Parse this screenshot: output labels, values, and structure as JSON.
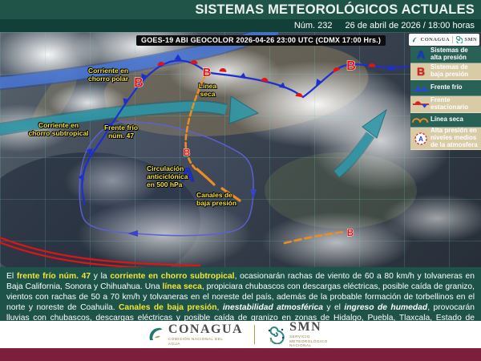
{
  "header": {
    "title": "SISTEMAS METEOROLÓGICOS ACTUALES",
    "bulletin_number": "Núm. 232",
    "datetime": "26 de abril de 2026 / 18:00 horas"
  },
  "map": {
    "satellite_caption": "GOES-19 ABI GEOCOLOR 2026-04-26 23:00 UTC (CDMX  17:00 Hrs.)",
    "corner_logos": {
      "conagua": "CONAGUA",
      "smn": "SMN"
    },
    "labels": {
      "polar_jet": "Corriente en\nchorro polar",
      "subtropical_jet": "Corriente en\nchorro subtropical",
      "cold_front": "Frente frío\nnúm. 47",
      "dry_line": "Línea\nseca",
      "anticyclone": "Circulación\nanticiclónica\nen 500 hPa",
      "low_channels": "Canales de\nbaja presión"
    },
    "symbols": {
      "high": "A",
      "low": "B"
    }
  },
  "legend": {
    "items": [
      {
        "symbol": "A",
        "label": "Sistemas de alta presión"
      },
      {
        "symbol": "B",
        "label": "Sistemas de baja presión"
      },
      {
        "symbol": "cold-front-icon",
        "label": "Frente frío"
      },
      {
        "symbol": "stationary-front-icon",
        "label": "Frente estacionario"
      },
      {
        "symbol": "dry-line-icon",
        "label": "Línea seca"
      },
      {
        "symbol": "mid-level-high-icon",
        "label": "Alta presión en niveles medios de la atmosfera"
      }
    ]
  },
  "summary": {
    "segments": [
      {
        "t": "El ",
        "s": "n"
      },
      {
        "t": "frente frío núm. 47",
        "s": "y"
      },
      {
        "t": " y la ",
        "s": "n"
      },
      {
        "t": "corriente en chorro subtropical",
        "s": "y"
      },
      {
        "t": ", ocasionarán rachas de viento de 60 a 80 km/h y tolvaneras en Baja California, Sonora y Chihuahua. Una ",
        "s": "n"
      },
      {
        "t": "línea seca",
        "s": "y"
      },
      {
        "t": ", propiciara chubascos con descargas eléctricas, posible caída de granizo, vientos con rachas de 50 a 70 km/h y tolvaneras en el noreste del país, además de la probable formación de torbellinos en el norte y noreste de Coahuila. ",
        "s": "n"
      },
      {
        "t": "Canales de baja presión",
        "s": "y"
      },
      {
        "t": ", ",
        "s": "n"
      },
      {
        "t": "inestabilidad atmosférica",
        "s": "i"
      },
      {
        "t": " y el ",
        "s": "n"
      },
      {
        "t": "ingreso de humedad",
        "s": "i"
      },
      {
        "t": ", provocarán lluvias con chubascos, descargas eléctricas y posible caída de granizo en zonas de Hidalgo, Puebla, Tlaxcala, Estado de México, Ciudad de México, Morelos, Michoacán, Guerrero, Oaxaca y Chiapas.",
        "s": "n"
      }
    ]
  },
  "footer": {
    "conagua": {
      "name": "CONAGUA",
      "tagline": "COMISIÓN NACIONAL DEL AGUA"
    },
    "smn": {
      "name": "SMN",
      "tagline": "SERVICIO METEOROLÓGICO NACIONAL"
    }
  },
  "colors": {
    "header_teal": "#215449",
    "header_dark": "#123f37",
    "panel_teal": "#1d5348",
    "maroon_band": "#7c1f3d",
    "legend_teal": "#2a6157",
    "legend_tan": "#d9cba5",
    "label_yellow": "#f6e53a",
    "dry_line_orange": "#ee8d1e",
    "front_blue": "#1d2fd0",
    "front_red": "#e01414",
    "jet_polar_blue": "#4b79d8",
    "jet_subtropical_teal": "#2f98a8"
  }
}
